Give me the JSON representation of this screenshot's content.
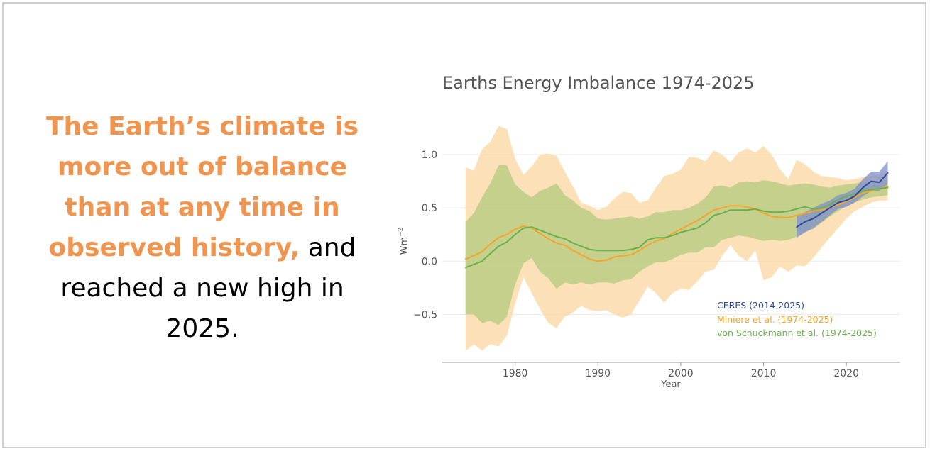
{
  "headline": {
    "highlight": "The Earth’s climate is more out of balance than at any time in observed history,",
    "rest": " and reached a new high in 2025."
  },
  "chart_data": {
    "type": "line",
    "title": "Earths Energy Imbalance 1974-2025",
    "xlabel": "Year",
    "ylabel": "Wm",
    "ylabel_sup": "−2",
    "xlim": [
      1971.2,
      2026.5
    ],
    "ylim": [
      -0.95,
      1.32
    ],
    "xticks": [
      1980,
      1990,
      2000,
      2010,
      2020
    ],
    "yticks": [
      -0.5,
      0.0,
      0.5,
      1.0
    ],
    "ytick_labels": [
      "−0.5",
      "0.0",
      "0.5",
      "1.0"
    ],
    "colors": {
      "ceres": "#2e4a9e",
      "ceres_band": "#7d8fcc",
      "miniere": "#f5a52a",
      "miniere_band": "#fbd7a3",
      "schuckmann": "#6ab04c",
      "schuckmann_band": "#aec97a"
    },
    "series": [
      {
        "name": "CERES (2014-2025)",
        "key": "ceres",
        "x": [
          2014,
          2015,
          2016,
          2017,
          2018,
          2019,
          2020,
          2021,
          2022,
          2023,
          2024,
          2025
        ],
        "values": [
          0.32,
          0.37,
          0.4,
          0.45,
          0.5,
          0.55,
          0.57,
          0.61,
          0.69,
          0.75,
          0.74,
          0.83
        ],
        "lower": [
          0.22,
          0.27,
          0.31,
          0.37,
          0.43,
          0.49,
          0.51,
          0.55,
          0.61,
          0.66,
          0.66,
          0.72
        ],
        "upper": [
          0.42,
          0.46,
          0.5,
          0.54,
          0.57,
          0.62,
          0.64,
          0.68,
          0.77,
          0.84,
          0.84,
          0.94
        ]
      },
      {
        "name": "Miniere et al. (1974-2025)",
        "key": "miniere",
        "x": [
          1974,
          1975,
          1976,
          1977,
          1978,
          1979,
          1980,
          1981,
          1982,
          1983,
          1984,
          1985,
          1986,
          1987,
          1988,
          1989,
          1990,
          1991,
          1992,
          1993,
          1994,
          1995,
          1996,
          1997,
          1998,
          1999,
          2000,
          2001,
          2002,
          2003,
          2004,
          2005,
          2006,
          2007,
          2008,
          2009,
          2010,
          2011,
          2012,
          2013,
          2014,
          2015,
          2016,
          2017,
          2018,
          2019,
          2020,
          2021,
          2022,
          2023,
          2024,
          2025
        ],
        "values": [
          0.02,
          0.05,
          0.09,
          0.16,
          0.22,
          0.25,
          0.3,
          0.33,
          0.31,
          0.26,
          0.21,
          0.17,
          0.15,
          0.1,
          0.06,
          0.02,
          0.0,
          0.01,
          0.04,
          0.05,
          0.06,
          0.1,
          0.15,
          0.19,
          0.21,
          0.26,
          0.3,
          0.34,
          0.38,
          0.43,
          0.48,
          0.5,
          0.52,
          0.52,
          0.51,
          0.49,
          0.45,
          0.42,
          0.41,
          0.41,
          0.43,
          0.45,
          0.47,
          0.48,
          0.5,
          0.53,
          0.56,
          0.6,
          0.64,
          0.66,
          0.68,
          0.7
        ],
        "lower": [
          -0.84,
          -0.78,
          -0.84,
          -0.78,
          -0.8,
          -0.7,
          -0.4,
          -0.15,
          -0.3,
          -0.45,
          -0.58,
          -0.63,
          -0.52,
          -0.48,
          -0.42,
          -0.46,
          -0.47,
          -0.46,
          -0.5,
          -0.53,
          -0.5,
          -0.37,
          -0.24,
          -0.3,
          -0.39,
          -0.3,
          -0.26,
          -0.27,
          -0.19,
          -0.1,
          -0.08,
          0.05,
          0.15,
          0.05,
          0.0,
          0.1,
          -0.18,
          -0.15,
          -0.05,
          -0.1,
          -0.04,
          -0.05,
          0.03,
          0.13,
          0.22,
          0.31,
          0.4,
          0.47,
          0.51,
          0.55,
          0.57,
          0.57
        ],
        "upper": [
          0.88,
          0.85,
          1.05,
          1.12,
          1.27,
          1.24,
          0.96,
          0.81,
          0.89,
          1.0,
          1.01,
          0.99,
          0.84,
          0.7,
          0.55,
          0.52,
          0.48,
          0.51,
          0.59,
          0.65,
          0.64,
          0.55,
          0.57,
          0.69,
          0.8,
          0.82,
          0.86,
          0.98,
          0.97,
          0.94,
          1.04,
          1.0,
          0.93,
          1.02,
          1.06,
          1.02,
          1.08,
          1.0,
          0.86,
          0.77,
          0.95,
          0.91,
          0.84,
          0.8,
          0.79,
          0.78,
          0.76,
          0.77,
          0.79,
          0.8,
          0.82,
          0.84
        ]
      },
      {
        "name": "von Schuckmann et al. (1974-2025)",
        "key": "schuckmann",
        "x": [
          1974,
          1975,
          1976,
          1977,
          1978,
          1979,
          1980,
          1981,
          1982,
          1983,
          1984,
          1985,
          1986,
          1987,
          1988,
          1989,
          1990,
          1991,
          1992,
          1993,
          1994,
          1995,
          1996,
          1997,
          1998,
          1999,
          2000,
          2001,
          2002,
          2003,
          2004,
          2005,
          2006,
          2007,
          2008,
          2009,
          2010,
          2011,
          2012,
          2013,
          2014,
          2015,
          2016,
          2017,
          2018,
          2019,
          2020,
          2021,
          2022,
          2023,
          2024,
          2025
        ],
        "values": [
          -0.06,
          -0.03,
          0.0,
          0.07,
          0.14,
          0.18,
          0.25,
          0.31,
          0.32,
          0.29,
          0.26,
          0.23,
          0.21,
          0.17,
          0.14,
          0.11,
          0.1,
          0.1,
          0.1,
          0.1,
          0.11,
          0.13,
          0.2,
          0.22,
          0.22,
          0.24,
          0.27,
          0.29,
          0.31,
          0.36,
          0.43,
          0.45,
          0.48,
          0.48,
          0.48,
          0.49,
          0.47,
          0.46,
          0.46,
          0.47,
          0.49,
          0.51,
          0.49,
          0.5,
          0.53,
          0.58,
          0.61,
          0.63,
          0.66,
          0.67,
          0.68,
          0.69
        ],
        "lower": [
          -0.5,
          -0.5,
          -0.58,
          -0.56,
          -0.6,
          -0.52,
          -0.22,
          -0.02,
          0.03,
          -0.1,
          -0.16,
          -0.26,
          -0.2,
          -0.22,
          -0.2,
          -0.22,
          -0.2,
          -0.2,
          -0.21,
          -0.18,
          -0.17,
          -0.1,
          -0.05,
          -0.01,
          -0.01,
          0.02,
          0.06,
          0.08,
          0.08,
          0.13,
          0.13,
          0.2,
          0.22,
          0.24,
          0.23,
          0.21,
          0.19,
          0.2,
          0.19,
          0.2,
          0.23,
          0.28,
          0.3,
          0.36,
          0.42,
          0.47,
          0.52,
          0.55,
          0.58,
          0.6,
          0.61,
          0.62
        ],
        "upper": [
          0.37,
          0.45,
          0.6,
          0.73,
          0.9,
          0.9,
          0.72,
          0.65,
          0.6,
          0.66,
          0.69,
          0.73,
          0.62,
          0.57,
          0.5,
          0.47,
          0.4,
          0.39,
          0.4,
          0.41,
          0.42,
          0.4,
          0.42,
          0.46,
          0.46,
          0.48,
          0.48,
          0.5,
          0.54,
          0.6,
          0.7,
          0.71,
          0.69,
          0.74,
          0.75,
          0.74,
          0.76,
          0.75,
          0.73,
          0.71,
          0.72,
          0.73,
          0.72,
          0.7,
          0.69,
          0.71,
          0.72,
          0.73,
          0.74,
          0.75,
          0.75,
          0.76
        ]
      }
    ]
  }
}
